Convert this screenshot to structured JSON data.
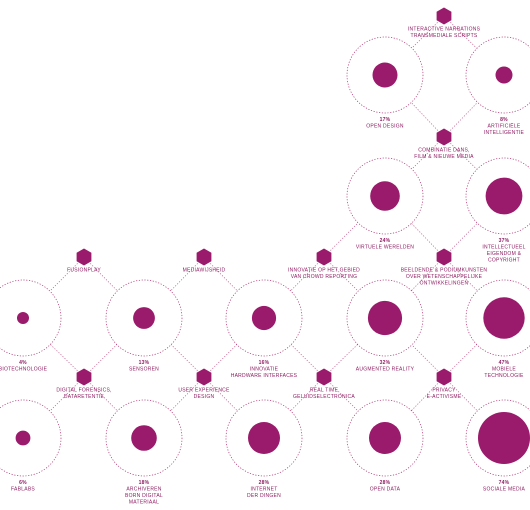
{
  "colors": {
    "accent": "#9a1a6b",
    "ring": "#b0306f",
    "connector": "#c05a8a",
    "text": "#8e1b61"
  },
  "topics": [
    {
      "id": "open-design",
      "value": 17,
      "label": [
        "OPEN DESIGN"
      ]
    },
    {
      "id": "artificial-intelligence",
      "value": 8,
      "label": [
        "ARTIFICIËLE",
        "INTELLIGENTIE"
      ]
    },
    {
      "id": "virtual-worlds",
      "value": 24,
      "label": [
        "VIRTUELE WERELDEN"
      ]
    },
    {
      "id": "ip-copyright",
      "value": 37,
      "label": [
        "INTELLECTUEEL",
        "EIGENDOM &",
        "COPYRIGHT"
      ]
    },
    {
      "id": "biotechnology",
      "value": 4,
      "label": [
        "BIOTECHNOLOGIE"
      ]
    },
    {
      "id": "sensors",
      "value": 13,
      "label": [
        "SENSOREN"
      ]
    },
    {
      "id": "hardware-interfaces",
      "value": 16,
      "label": [
        "INNOVATIE",
        "HARDWARE INTERFACES"
      ]
    },
    {
      "id": "augmented-reality",
      "value": 32,
      "label": [
        "AUGMENTED REALITY"
      ]
    },
    {
      "id": "mobile-technology",
      "value": 47,
      "label": [
        "MOBIELE",
        "TECHNOLOGIE"
      ]
    },
    {
      "id": "fablabs",
      "value": 6,
      "label": [
        "FABLABS"
      ]
    },
    {
      "id": "born-digital-archiving",
      "value": 18,
      "label": [
        "ARCHIVEREN",
        "BORN DIGITAL",
        "MATERIAAL"
      ]
    },
    {
      "id": "internet-of-things",
      "value": 28,
      "label": [
        "INTERNET",
        "DER DINGEN"
      ]
    },
    {
      "id": "open-data",
      "value": 28,
      "label": [
        "OPEN DATA"
      ]
    },
    {
      "id": "social-media",
      "value": 74,
      "label": [
        "SOCIALE MEDIA"
      ]
    }
  ],
  "themes": [
    {
      "id": "interactive-narrations",
      "label": [
        "INTERACTIVE NARRATIONS",
        "TRANSMEDIALE SCRIPTS"
      ]
    },
    {
      "id": "dance-film-media",
      "label": [
        "COMBINATIE DANS,",
        "FILM & NIEUWE MEDIA"
      ]
    },
    {
      "id": "fusionplay",
      "label": [
        "FUSIONPLAY"
      ]
    },
    {
      "id": "media-wisdom",
      "label": [
        "MEDIAWIJSHEID"
      ]
    },
    {
      "id": "crowd-reporting",
      "label": [
        "INNOVATIE OP HET GEBIED",
        "VAN CROWD REPORTING"
      ]
    },
    {
      "id": "visual-performing-arts",
      "label": [
        "BEELDENDE & PODIUMKUNSTEN",
        "OVER WETENSCHAPPELIJKE",
        "ONTWIKKELINGEN"
      ]
    },
    {
      "id": "digital-forensics",
      "label": [
        "DIGITAL FORENSICS,",
        "DATARETENTIE"
      ]
    },
    {
      "id": "user-experience",
      "label": [
        "USER EXPERIENCE",
        "DESIGN"
      ]
    },
    {
      "id": "real-time-electronics",
      "label": [
        "REAL TIME",
        "GELUIDSELECTRONICA"
      ]
    },
    {
      "id": "privacy-activism",
      "label": [
        "PRIVACY",
        "E-ACTIVISME"
      ]
    }
  ]
}
